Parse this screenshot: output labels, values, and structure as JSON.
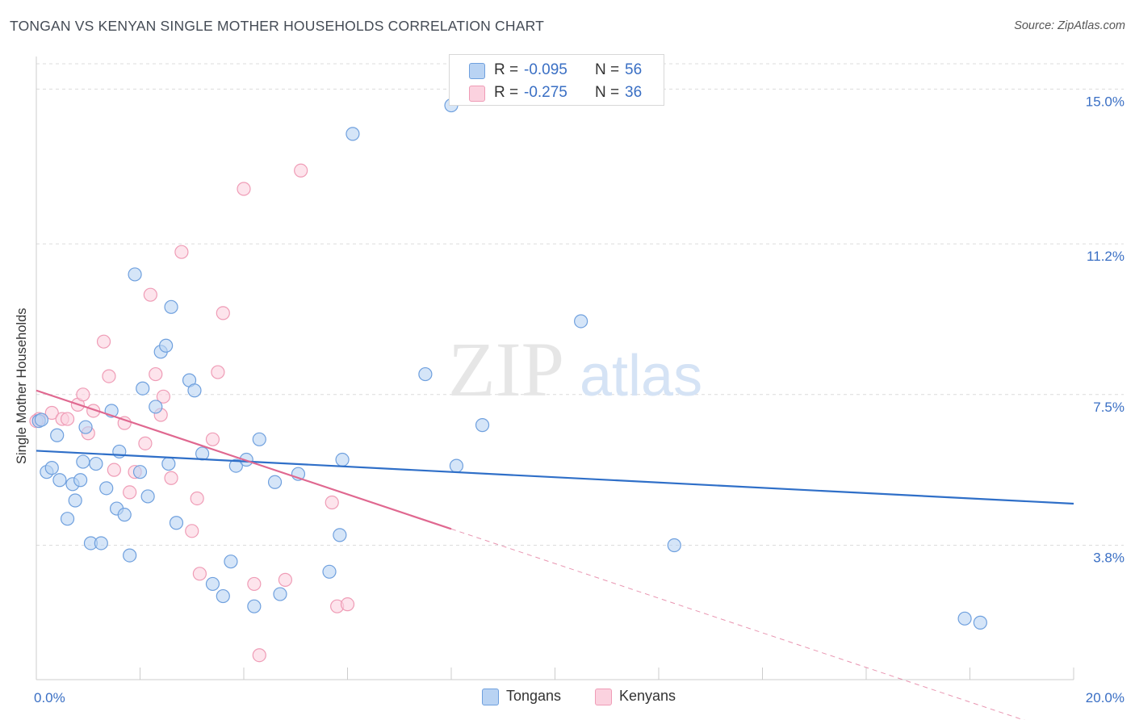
{
  "title": "TONGAN VS KENYAN SINGLE MOTHER HOUSEHOLDS CORRELATION CHART",
  "source": "Source: ZipAtlas.com",
  "watermark": {
    "zip": "ZIP",
    "atlas": "atlas"
  },
  "legend_top": [
    {
      "r_label": "R =",
      "r_value": "-0.095",
      "n_label": "N =",
      "n_value": "56",
      "color": "#a9c8f0"
    },
    {
      "r_label": "R =",
      "r_value": "-0.275",
      "n_label": "N =",
      "n_value": "36",
      "color": "#f8bfd0"
    }
  ],
  "chart_data": {
    "type": "scatter",
    "title": "TONGAN VS KENYAN SINGLE MOTHER HOUSEHOLDS CORRELATION CHART",
    "ylabel": "Single Mother Households",
    "xlabel": "",
    "xlim": [
      0,
      20
    ],
    "ylim": [
      0.5,
      15.8
    ],
    "x_tick_labels": [
      "0.0%",
      "20.0%"
    ],
    "y_ticks": [
      3.8,
      7.5,
      11.2,
      15.0
    ],
    "y_tick_labels": [
      "3.8%",
      "7.5%",
      "11.2%",
      "15.0%"
    ],
    "grid": true,
    "legend_position": "bottom-center",
    "series": [
      {
        "name": "Tongans",
        "color": "#6fa0de",
        "fill": "#b9d3f3",
        "trend": {
          "x": [
            0,
            20
          ],
          "y": [
            6.12,
            4.82
          ],
          "color": "#2f6fc8"
        },
        "points": [
          [
            0.05,
            6.85
          ],
          [
            0.1,
            6.88
          ],
          [
            0.2,
            5.6
          ],
          [
            0.3,
            5.7
          ],
          [
            0.4,
            6.5
          ],
          [
            0.45,
            5.4
          ],
          [
            0.6,
            4.45
          ],
          [
            0.7,
            5.3
          ],
          [
            0.75,
            4.9
          ],
          [
            0.85,
            5.4
          ],
          [
            0.9,
            5.85
          ],
          [
            0.95,
            6.7
          ],
          [
            1.05,
            3.85
          ],
          [
            1.15,
            5.8
          ],
          [
            1.25,
            3.85
          ],
          [
            1.35,
            5.2
          ],
          [
            1.45,
            7.1
          ],
          [
            1.55,
            4.7
          ],
          [
            1.6,
            6.1
          ],
          [
            1.7,
            4.55
          ],
          [
            1.8,
            3.55
          ],
          [
            1.9,
            10.45
          ],
          [
            2.0,
            5.6
          ],
          [
            2.05,
            7.65
          ],
          [
            2.15,
            5.0
          ],
          [
            2.3,
            7.2
          ],
          [
            2.4,
            8.55
          ],
          [
            2.5,
            8.7
          ],
          [
            2.55,
            5.8
          ],
          [
            2.6,
            9.65
          ],
          [
            2.7,
            4.35
          ],
          [
            2.95,
            7.85
          ],
          [
            3.05,
            7.6
          ],
          [
            3.2,
            6.05
          ],
          [
            3.4,
            2.85
          ],
          [
            3.6,
            2.55
          ],
          [
            3.75,
            3.4
          ],
          [
            3.85,
            5.75
          ],
          [
            4.05,
            5.9
          ],
          [
            4.2,
            2.3
          ],
          [
            4.3,
            6.4
          ],
          [
            4.6,
            5.35
          ],
          [
            4.7,
            2.6
          ],
          [
            5.05,
            5.55
          ],
          [
            5.65,
            3.15
          ],
          [
            5.85,
            4.05
          ],
          [
            5.9,
            5.9
          ],
          [
            6.1,
            13.9
          ],
          [
            7.5,
            8.0
          ],
          [
            8.0,
            14.6
          ],
          [
            8.1,
            5.75
          ],
          [
            8.6,
            6.75
          ],
          [
            10.5,
            9.3
          ],
          [
            12.3,
            3.8
          ],
          [
            17.9,
            2.0
          ],
          [
            18.2,
            1.9
          ]
        ]
      },
      {
        "name": "Kenyans",
        "color": "#ef9cb6",
        "fill": "#fbd2df",
        "trend": {
          "x": [
            0,
            8.0
          ],
          "y": [
            7.6,
            4.2
          ],
          "color": "#e06890"
        },
        "trend_extension": {
          "x": [
            8.0,
            20
          ],
          "y": [
            4.2,
            -0.9
          ]
        },
        "points": [
          [
            0.05,
            6.9
          ],
          [
            0.3,
            7.05
          ],
          [
            0.5,
            6.9
          ],
          [
            0.6,
            6.9
          ],
          [
            0.8,
            7.25
          ],
          [
            0.9,
            7.5
          ],
          [
            1.0,
            6.55
          ],
          [
            1.1,
            7.1
          ],
          [
            1.3,
            8.8
          ],
          [
            1.4,
            7.95
          ],
          [
            1.5,
            5.65
          ],
          [
            1.7,
            6.8
          ],
          [
            1.8,
            5.1
          ],
          [
            1.9,
            5.6
          ],
          [
            2.1,
            6.3
          ],
          [
            2.2,
            9.95
          ],
          [
            2.3,
            8.0
          ],
          [
            2.4,
            7.0
          ],
          [
            2.45,
            7.45
          ],
          [
            2.6,
            5.45
          ],
          [
            2.8,
            11.0
          ],
          [
            3.0,
            4.15
          ],
          [
            3.1,
            4.95
          ],
          [
            3.15,
            3.1
          ],
          [
            3.4,
            6.4
          ],
          [
            3.5,
            8.05
          ],
          [
            3.6,
            9.5
          ],
          [
            4.0,
            12.55
          ],
          [
            4.2,
            2.85
          ],
          [
            4.3,
            1.1
          ],
          [
            4.8,
            2.95
          ],
          [
            5.1,
            13.0
          ],
          [
            5.7,
            4.85
          ],
          [
            5.8,
            2.3
          ],
          [
            6.0,
            2.35
          ],
          [
            0.0,
            6.85
          ]
        ]
      }
    ]
  },
  "bottom_legend": [
    {
      "label": "Tongans",
      "color": "#b9d3f3",
      "border": "#6fa0de"
    },
    {
      "label": "Kenyans",
      "color": "#fbd2df",
      "border": "#ef9cb6"
    }
  ]
}
